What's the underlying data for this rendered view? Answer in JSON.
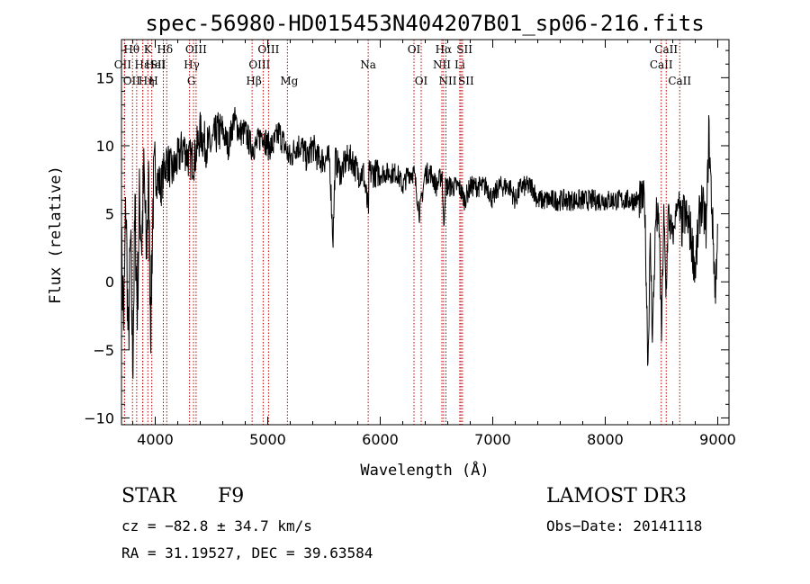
{
  "chart_data": {
    "type": "line",
    "title": "spec-56980-HD015453N404207B01_sp06-216.fits",
    "xlabel": "Wavelength (Å)",
    "ylabel": "Flux (relative)",
    "xlim": [
      3700,
      9100
    ],
    "ylim": [
      -10.5,
      17.8
    ],
    "xticks": [
      4000,
      5000,
      6000,
      7000,
      8000,
      9000
    ],
    "yticks": [
      -10,
      -5,
      0,
      5,
      10,
      15
    ],
    "xtick_labels": [
      "4000",
      "5000",
      "6000",
      "7000",
      "8000",
      "9000"
    ],
    "ytick_labels": [
      "−10",
      "−5",
      "0",
      "5",
      "10",
      "15"
    ],
    "series": [
      {
        "name": "flux",
        "x": [
          3700,
          3720,
          3740,
          3760,
          3780,
          3800,
          3820,
          3840,
          3860,
          3880,
          3900,
          3920,
          3940,
          3960,
          3980,
          4000,
          4050,
          4100,
          4150,
          4200,
          4250,
          4300,
          4350,
          4400,
          4450,
          4500,
          4550,
          4600,
          4650,
          4700,
          4750,
          4800,
          4850,
          4900,
          4950,
          5000,
          5050,
          5100,
          5150,
          5200,
          5250,
          5300,
          5350,
          5400,
          5450,
          5500,
          5550,
          5580,
          5600,
          5650,
          5700,
          5750,
          5800,
          5850,
          5895,
          5900,
          5950,
          6000,
          6050,
          6100,
          6150,
          6200,
          6250,
          6300,
          6350,
          6400,
          6450,
          6500,
          6550,
          6563,
          6580,
          6600,
          6650,
          6700,
          6750,
          6800,
          6850,
          6900,
          6950,
          7000,
          7050,
          7100,
          7150,
          7200,
          7250,
          7300,
          7350,
          7400,
          7450,
          7500,
          7550,
          7600,
          7650,
          7700,
          7750,
          7800,
          7850,
          7900,
          7950,
          8000,
          8050,
          8100,
          8150,
          8200,
          8250,
          8300,
          8350,
          8380,
          8400,
          8420,
          8450,
          8480,
          8500,
          8520,
          8540,
          8560,
          8600,
          8640,
          8680,
          8700,
          8750,
          8800,
          8850,
          8900,
          8920,
          8950,
          8980,
          9000
        ],
        "y": [
          2,
          -3,
          6,
          -5,
          3,
          -6,
          5,
          -2,
          6,
          3,
          8,
          2,
          7,
          -3,
          6,
          8,
          7,
          9,
          8,
          9,
          10,
          9,
          9,
          11,
          10,
          10,
          11,
          11,
          10,
          12,
          11,
          11,
          10,
          10,
          11,
          10,
          10,
          11,
          10,
          9,
          10,
          10,
          9,
          10,
          9,
          9,
          9,
          3,
          9,
          8,
          9,
          9,
          8,
          8,
          5,
          8,
          8,
          8,
          8,
          8,
          8,
          7,
          8,
          8,
          5,
          8,
          8,
          7,
          8,
          4,
          7,
          7,
          7,
          7,
          6,
          7,
          7,
          7,
          7,
          6,
          7,
          7,
          7,
          6,
          7,
          7,
          7,
          6,
          6,
          6,
          6,
          6,
          6,
          6,
          6,
          6,
          6,
          6,
          6,
          6,
          6,
          6,
          6,
          6,
          6,
          6,
          6,
          -6,
          3,
          -4,
          5,
          4,
          -4,
          5,
          -1,
          5,
          3,
          6,
          4,
          5,
          4,
          1,
          6,
          4,
          11,
          5,
          -1,
          5
        ]
      }
    ],
    "lines": [
      {
        "name": "OII",
        "x": 3727,
        "row": 2,
        "dx": -2
      },
      {
        "name": "Hθ",
        "x": 3798,
        "row": 1,
        "dx": -1
      },
      {
        "name": "OII",
        "x": 3727,
        "row": 3,
        "dx": 8
      },
      {
        "name": "Hε",
        "x": 3835,
        "row": 2,
        "dx": 6
      },
      {
        "name": "Hη",
        "x": 3889,
        "row": 3,
        "dx": 4
      },
      {
        "name": "K",
        "x": 3934,
        "row": 1,
        "dx": 0
      },
      {
        "name": "HeI",
        "x": 3889,
        "row": 2,
        "dx": 14
      },
      {
        "name": "H",
        "x": 3969,
        "row": 3,
        "dx": 2
      },
      {
        "name": "SII",
        "x": 4072,
        "row": 2,
        "dx": -6
      },
      {
        "name": "Hδ",
        "x": 4102,
        "row": 1,
        "dx": -2
      },
      {
        "name": "Hγ",
        "x": 4340,
        "row": 2,
        "dx": -2
      },
      {
        "name": "OIII",
        "x": 4363,
        "row": 1,
        "dx": 0
      },
      {
        "name": "G",
        "x": 4305,
        "row": 3,
        "dx": 2
      },
      {
        "name": "Hβ",
        "x": 4861,
        "row": 3,
        "dx": 2
      },
      {
        "name": "OIII",
        "x": 4959,
        "row": 2,
        "dx": -4
      },
      {
        "name": "OIII",
        "x": 5007,
        "row": 1,
        "dx": 0
      },
      {
        "name": "Mg",
        "x": 5175,
        "row": 3,
        "dx": 2
      },
      {
        "name": "Na",
        "x": 5893,
        "row": 2,
        "dx": 0
      },
      {
        "name": "OI",
        "x": 6300,
        "row": 1,
        "dx": 0
      },
      {
        "name": "OI",
        "x": 6364,
        "row": 3,
        "dx": 0
      },
      {
        "name": "NII",
        "x": 6548,
        "row": 2,
        "dx": 0
      },
      {
        "name": "Hα",
        "x": 6563,
        "row": 1,
        "dx": 0
      },
      {
        "name": "NII",
        "x": 6584,
        "row": 3,
        "dx": 2
      },
      {
        "name": "Li",
        "x": 6707,
        "row": 2,
        "dx": 0
      },
      {
        "name": "SII",
        "x": 6717,
        "row": 1,
        "dx": 4
      },
      {
        "name": "SII",
        "x": 6731,
        "row": 3,
        "dx": 4
      },
      {
        "name": "CaII",
        "x": 8498,
        "row": 2,
        "dx": 0
      },
      {
        "name": "CaII",
        "x": 8542,
        "row": 1,
        "dx": 0
      },
      {
        "name": "CaII",
        "x": 8662,
        "row": 3,
        "dx": 0
      }
    ]
  },
  "info": {
    "class": "STAR",
    "subclass": "F9",
    "survey": "LAMOST DR3",
    "cz": "cz = −82.8 ± 34.7 km/s",
    "obsdate": "Obs−Date: 20141118",
    "radec": "RA =  31.19527, DEC =  39.63584"
  }
}
